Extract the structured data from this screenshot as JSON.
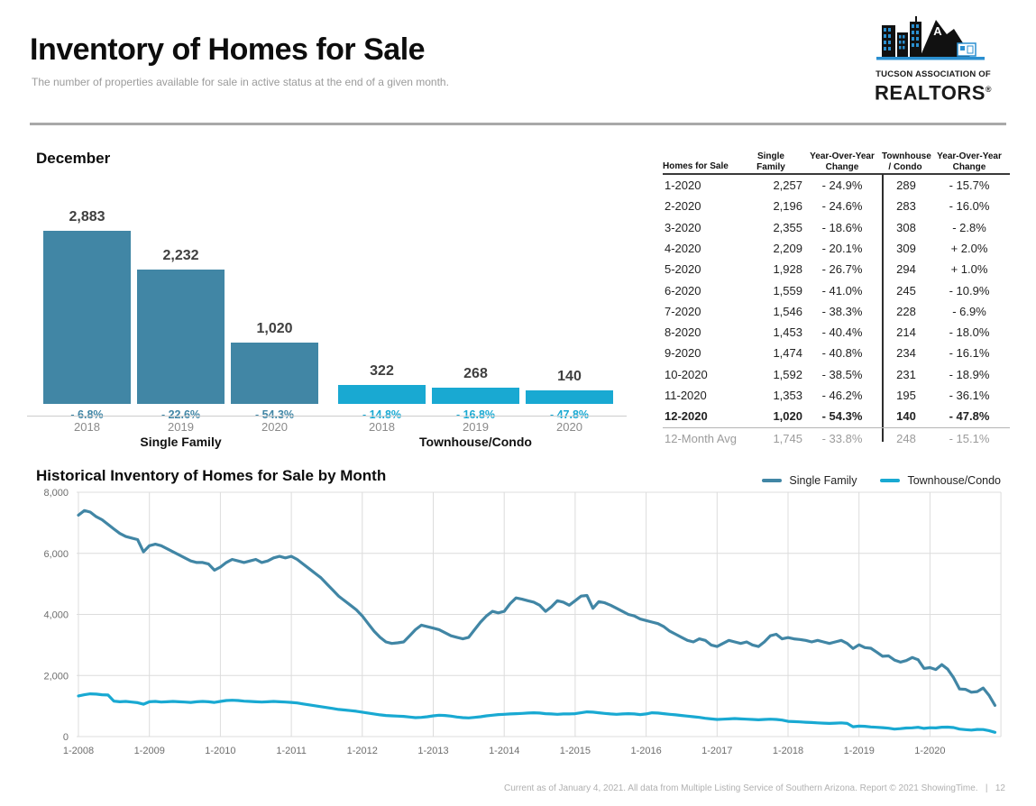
{
  "header": {
    "title": "Inventory of Homes for Sale",
    "subtitle": "The number of properties available for sale in active status at the end of a given month.",
    "logo": {
      "line1": "TUCSON ASSOCIATION OF",
      "line2": "REALTORS",
      "registered": "®"
    }
  },
  "bar_section": {
    "title": "December"
  },
  "line_section": {
    "title": "Historical Inventory of Homes for Sale by Month"
  },
  "table": {
    "headers": [
      [
        "Homes for Sale"
      ],
      [
        "Single",
        "Family"
      ],
      [
        "Year-Over-Year",
        "Change"
      ],
      [
        "Townhouse",
        "/ Condo"
      ],
      [
        "Year-Over-Year",
        "Change"
      ]
    ],
    "rows": [
      {
        "month": "1-2020",
        "sf": "2,257",
        "sf_yoy": "- 24.9%",
        "tc": "289",
        "tc_yoy": "- 15.7%",
        "bold": false
      },
      {
        "month": "2-2020",
        "sf": "2,196",
        "sf_yoy": "- 24.6%",
        "tc": "283",
        "tc_yoy": "- 16.0%",
        "bold": false
      },
      {
        "month": "3-2020",
        "sf": "2,355",
        "sf_yoy": "- 18.6%",
        "tc": "308",
        "tc_yoy": "- 2.8%",
        "bold": false
      },
      {
        "month": "4-2020",
        "sf": "2,209",
        "sf_yoy": "- 20.1%",
        "tc": "309",
        "tc_yoy": "+ 2.0%",
        "bold": false
      },
      {
        "month": "5-2020",
        "sf": "1,928",
        "sf_yoy": "- 26.7%",
        "tc": "294",
        "tc_yoy": "+ 1.0%",
        "bold": false
      },
      {
        "month": "6-2020",
        "sf": "1,559",
        "sf_yoy": "- 41.0%",
        "tc": "245",
        "tc_yoy": "- 10.9%",
        "bold": false
      },
      {
        "month": "7-2020",
        "sf": "1,546",
        "sf_yoy": "- 38.3%",
        "tc": "228",
        "tc_yoy": "- 6.9%",
        "bold": false
      },
      {
        "month": "8-2020",
        "sf": "1,453",
        "sf_yoy": "- 40.4%",
        "tc": "214",
        "tc_yoy": "- 18.0%",
        "bold": false
      },
      {
        "month": "9-2020",
        "sf": "1,474",
        "sf_yoy": "- 40.8%",
        "tc": "234",
        "tc_yoy": "- 16.1%",
        "bold": false
      },
      {
        "month": "10-2020",
        "sf": "1,592",
        "sf_yoy": "- 38.5%",
        "tc": "231",
        "tc_yoy": "- 18.9%",
        "bold": false
      },
      {
        "month": "11-2020",
        "sf": "1,353",
        "sf_yoy": "- 46.2%",
        "tc": "195",
        "tc_yoy": "- 36.1%",
        "bold": false
      },
      {
        "month": "12-2020",
        "sf": "1,020",
        "sf_yoy": "- 54.3%",
        "tc": "140",
        "tc_yoy": "- 47.8%",
        "bold": true
      }
    ],
    "avg_row": {
      "month": "12-Month Avg",
      "sf": "1,745",
      "sf_yoy": "- 33.8%",
      "tc": "248",
      "tc_yoy": "- 15.1%"
    }
  },
  "colors": {
    "single_family": "#4186a5",
    "townhouse_condo": "#19a9d2",
    "grid": "#dcdcdc",
    "axis_text": "#6e6e6e"
  },
  "chart_data": [
    {
      "type": "bar",
      "title": "December",
      "groups": [
        {
          "name": "Single Family",
          "color": "#4186a5",
          "categories": [
            "2018",
            "2019",
            "2020"
          ],
          "values": [
            2883,
            2232,
            1020
          ],
          "labels": [
            "2,883",
            "2,232",
            "1,020"
          ],
          "changes": [
            "- 6.8%",
            "- 22.6%",
            "- 54.3%"
          ]
        },
        {
          "name": "Townhouse/Condo",
          "color": "#19a9d2",
          "categories": [
            "2018",
            "2019",
            "2020"
          ],
          "values": [
            322,
            268,
            140
          ],
          "labels": [
            "322",
            "268",
            "140"
          ],
          "changes": [
            "- 14.8%",
            "- 16.8%",
            "- 47.8%"
          ]
        }
      ],
      "ylim": [
        0,
        2883
      ]
    },
    {
      "type": "line",
      "title": "Historical Inventory of Homes for Sale by Month",
      "x_tick_labels": [
        "1-2008",
        "1-2009",
        "1-2010",
        "1-2011",
        "1-2012",
        "1-2013",
        "1-2014",
        "1-2015",
        "1-2016",
        "1-2017",
        "1-2018",
        "1-2019",
        "1-2020"
      ],
      "y_tick_labels": [
        "0",
        "2,000",
        "4,000",
        "6,000",
        "8,000"
      ],
      "yticks": [
        0,
        2000,
        4000,
        6000,
        8000
      ],
      "ylim": [
        0,
        8000
      ],
      "grid": true,
      "legend_position": "top-right",
      "x_start": "1-2008",
      "x_end": "12-2020",
      "series": [
        {
          "name": "Single Family",
          "color": "#4186a5",
          "values": [
            7250,
            7400,
            7350,
            7200,
            7100,
            6950,
            6800,
            6650,
            6550,
            6500,
            6450,
            6050,
            6250,
            6300,
            6250,
            6150,
            6050,
            5950,
            5850,
            5750,
            5700,
            5700,
            5650,
            5450,
            5550,
            5700,
            5800,
            5750,
            5700,
            5750,
            5800,
            5700,
            5750,
            5850,
            5900,
            5850,
            5900,
            5800,
            5650,
            5500,
            5350,
            5200,
            5000,
            4800,
            4600,
            4450,
            4300,
            4150,
            3950,
            3700,
            3450,
            3250,
            3100,
            3050,
            3070,
            3100,
            3300,
            3500,
            3650,
            3600,
            3550,
            3500,
            3400,
            3300,
            3250,
            3200,
            3250,
            3500,
            3750,
            3950,
            4100,
            4050,
            4100,
            4350,
            4540,
            4500,
            4450,
            4400,
            4300,
            4100,
            4250,
            4450,
            4400,
            4300,
            4450,
            4600,
            4620,
            4200,
            4420,
            4380,
            4300,
            4200,
            4100,
            4000,
            3950,
            3850,
            3800,
            3750,
            3700,
            3600,
            3450,
            3350,
            3250,
            3150,
            3100,
            3200,
            3150,
            3000,
            2950,
            3050,
            3150,
            3100,
            3050,
            3100,
            3000,
            2950,
            3100,
            3300,
            3350,
            3200,
            3240,
            3200,
            3180,
            3150,
            3100,
            3150,
            3100,
            3050,
            3100,
            3150,
            3050,
            2883,
            3005,
            2913,
            2893,
            2765,
            2630,
            2642,
            2506,
            2438,
            2490,
            2589,
            2515,
            2232,
            2257,
            2196,
            2355,
            2209,
            1928,
            1559,
            1546,
            1453,
            1474,
            1592,
            1353,
            1020
          ]
        },
        {
          "name": "Townhouse/Condo",
          "color": "#19a9d2",
          "values": [
            1330,
            1370,
            1400,
            1390,
            1370,
            1360,
            1160,
            1140,
            1150,
            1130,
            1110,
            1060,
            1140,
            1150,
            1130,
            1140,
            1150,
            1140,
            1130,
            1120,
            1140,
            1150,
            1140,
            1120,
            1150,
            1180,
            1190,
            1180,
            1160,
            1150,
            1140,
            1130,
            1140,
            1150,
            1140,
            1130,
            1120,
            1100,
            1070,
            1040,
            1010,
            980,
            950,
            920,
            890,
            870,
            850,
            830,
            800,
            770,
            740,
            710,
            690,
            680,
            670,
            660,
            640,
            620,
            630,
            650,
            680,
            700,
            690,
            670,
            640,
            620,
            610,
            630,
            650,
            680,
            700,
            720,
            730,
            740,
            750,
            760,
            770,
            780,
            770,
            750,
            740,
            730,
            740,
            740,
            750,
            780,
            810,
            800,
            780,
            760,
            740,
            730,
            740,
            750,
            740,
            720,
            740,
            780,
            770,
            750,
            730,
            710,
            690,
            670,
            650,
            630,
            600,
            580,
            560,
            570,
            580,
            590,
            580,
            570,
            560,
            550,
            560,
            570,
            560,
            540,
            500,
            490,
            480,
            470,
            460,
            450,
            440,
            430,
            440,
            450,
            430,
            322,
            343,
            337,
            317,
            303,
            291,
            275,
            245,
            261,
            279,
            285,
            305,
            268,
            289,
            283,
            308,
            309,
            294,
            245,
            228,
            214,
            234,
            231,
            195,
            140
          ]
        }
      ]
    }
  ],
  "footer": {
    "text": "Current as of January 4, 2021. All data from Multiple Listing Service of Southern Arizona. Report © 2021 ShowingTime.",
    "separator": "|",
    "page": "12"
  }
}
